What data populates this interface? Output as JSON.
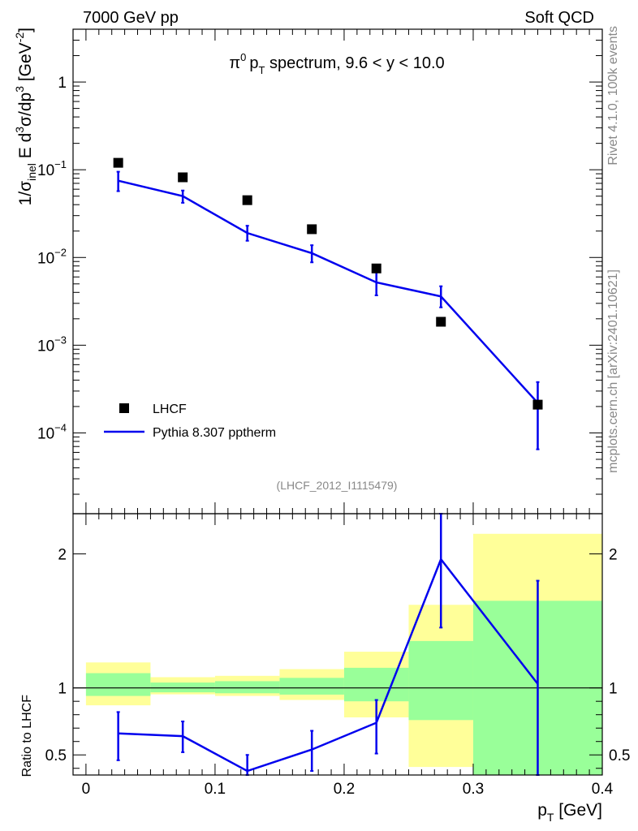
{
  "header": {
    "left": "7000 GeV pp",
    "right": "Soft QCD"
  },
  "side_labels": {
    "rivet": "Rivet 4.1.0,  100k events",
    "site": "mcplots.cern.ch [arXiv:2401.10621]"
  },
  "analysis_id": "(LHCF_2012_I1115479)",
  "colors": {
    "mc": "#0000ee",
    "data": "#000000",
    "band_inner": "#99ff99",
    "band_outer": "#ffff99"
  },
  "chart_data": [
    {
      "type": "scatter",
      "panel": "main",
      "title_parts": {
        "pi": "π",
        "zero": "0",
        "p": "p",
        "sub": "T",
        "rest": " spectrum, 9.6 < y < 10.0"
      },
      "ylabel_parts": {
        "a": "1/σ",
        "a_sub": "inel",
        "b": " E d",
        "b_sup": "3",
        "c": "σ/dp",
        "c_sup": "3",
        "d": " [GeV",
        "d_sup": "-2",
        "e": "]"
      },
      "yscale": "log",
      "ylim": [
        1.2e-05,
        4
      ],
      "xlim": [
        -0.01,
        0.4
      ],
      "y_ticks": [
        {
          "value": 1,
          "label": "1"
        },
        {
          "value": 0.1,
          "base": "10",
          "exp": "−1"
        },
        {
          "value": 0.01,
          "base": "10",
          "exp": "−2"
        },
        {
          "value": 0.001,
          "base": "10",
          "exp": "−3"
        },
        {
          "value": 0.0001,
          "base": "10",
          "exp": "−4"
        }
      ],
      "legend": [
        {
          "label": "LHCF",
          "kind": "marker"
        },
        {
          "label": "Pythia 8.307 pptherm",
          "kind": "line"
        }
      ],
      "legend_position": "bottom-left",
      "series": [
        {
          "name": "LHCF",
          "x": [
            0.025,
            0.075,
            0.125,
            0.175,
            0.225,
            0.275,
            0.35
          ],
          "y": [
            0.12,
            0.082,
            0.045,
            0.021,
            0.0075,
            0.00185,
            0.00021
          ]
        },
        {
          "name": "Pythia 8.307 pptherm",
          "x": [
            0.025,
            0.075,
            0.125,
            0.175,
            0.225,
            0.275,
            0.35
          ],
          "y": [
            0.075,
            0.05,
            0.019,
            0.0112,
            0.0052,
            0.0036,
            0.00022
          ],
          "y_low": [
            0.057,
            0.042,
            0.0155,
            0.0088,
            0.0037,
            0.0027,
            6.5e-05
          ],
          "y_high": [
            0.095,
            0.058,
            0.023,
            0.0138,
            0.0068,
            0.0047,
            0.00038
          ]
        }
      ]
    },
    {
      "type": "line",
      "panel": "ratio",
      "ylabel": "Ratio to LHCF",
      "xlabel": "p",
      "xlabel_sub": "T",
      "xlabel_unit": " [GeV]",
      "xlim": [
        -0.01,
        0.4
      ],
      "ylim": [
        0.35,
        2.3
      ],
      "x_ticks": [
        {
          "value": 0,
          "label": "0"
        },
        {
          "value": 0.1,
          "label": "0.1"
        },
        {
          "value": 0.2,
          "label": "0.2"
        },
        {
          "value": 0.3,
          "label": "0.3"
        },
        {
          "value": 0.4,
          "label": "0.4"
        }
      ],
      "y_ticks": [
        {
          "value": 0.5,
          "label": "0.5"
        },
        {
          "value": 1,
          "label": "1"
        },
        {
          "value": 2,
          "label": "2"
        }
      ],
      "bands": [
        {
          "x0": 0.0,
          "x1": 0.05,
          "inner": [
            0.94,
            1.11
          ],
          "outer": [
            0.87,
            1.19
          ]
        },
        {
          "x0": 0.05,
          "x1": 0.1,
          "inner": [
            0.967,
            1.04
          ],
          "outer": [
            0.952,
            1.08
          ]
        },
        {
          "x0": 0.1,
          "x1": 0.15,
          "inner": [
            0.96,
            1.05
          ],
          "outer": [
            0.94,
            1.09
          ]
        },
        {
          "x0": 0.15,
          "x1": 0.2,
          "inner": [
            0.95,
            1.075
          ],
          "outer": [
            0.91,
            1.14
          ]
        },
        {
          "x0": 0.2,
          "x1": 0.25,
          "inner": [
            0.9,
            1.15
          ],
          "outer": [
            0.78,
            1.27
          ]
        },
        {
          "x0": 0.25,
          "x1": 0.3,
          "inner": [
            0.76,
            1.35
          ],
          "outer": [
            0.41,
            1.62
          ]
        },
        {
          "x0": 0.3,
          "x1": 0.4,
          "inner": [
            0.35,
            1.65
          ],
          "outer": [
            0.35,
            2.15
          ]
        }
      ],
      "series": [
        {
          "name": "Pythia 8.307 pptherm / LHCF",
          "x": [
            0.025,
            0.075,
            0.125,
            0.175,
            0.225,
            0.275,
            0.35
          ],
          "y": [
            0.66,
            0.64,
            0.38,
            0.54,
            0.74,
            1.96,
            1.03
          ],
          "y_low": [
            0.46,
            0.52,
            0.29,
            0.38,
            0.51,
            1.45,
            0.3
          ],
          "y_high": [
            0.82,
            0.75,
            0.5,
            0.68,
            0.91,
            2.3,
            1.8
          ]
        }
      ]
    }
  ]
}
